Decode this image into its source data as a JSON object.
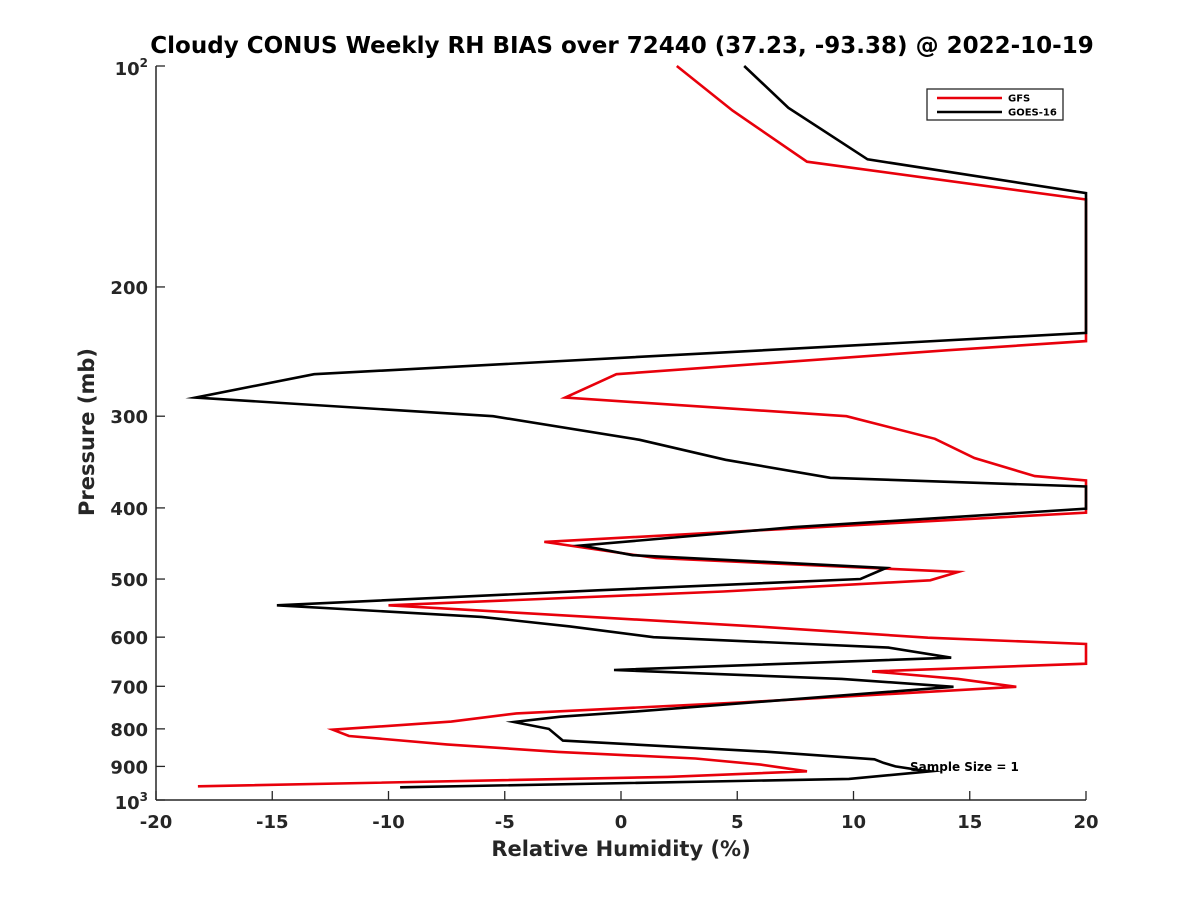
{
  "chart_data": {
    "type": "line",
    "title": "Cloudy CONUS Weekly RH BIAS over 72440 (37.23, -93.38) @ 2022-10-19",
    "xlabel": "Relative Humidity (%)",
    "ylabel": "Pressure (mb)",
    "xlim": [
      -20,
      20
    ],
    "ylim": [
      100,
      1000
    ],
    "y_scale": "log",
    "y_reversed": true,
    "xticks": [
      -20,
      -15,
      -10,
      -5,
      0,
      5,
      10,
      15,
      20
    ],
    "yticks": [
      {
        "label": "10",
        "sup": "2"
      },
      {
        "label": "200"
      },
      {
        "label": "300"
      },
      {
        "label": "400"
      },
      {
        "label": "500"
      },
      {
        "label": "600"
      },
      {
        "label": "700"
      },
      {
        "label": "800"
      },
      {
        "label": "900"
      },
      {
        "label": "10",
        "sup": "3"
      }
    ],
    "ytick_values": [
      100,
      200,
      300,
      400,
      500,
      600,
      700,
      800,
      900,
      1000
    ],
    "grid": false,
    "legend_position": "top-right",
    "annotation": "Sample Size = 1",
    "series": [
      {
        "name": "GFS",
        "color": "#e8000b",
        "points": [
          [
            2.4,
            100
          ],
          [
            4.8,
            115
          ],
          [
            8.0,
            135
          ],
          [
            20.0,
            152
          ],
          [
            20.0,
            237
          ],
          [
            14.0,
            244
          ],
          [
            -0.2,
            263
          ],
          [
            -2.4,
            283
          ],
          [
            9.7,
            300
          ],
          [
            13.5,
            322
          ],
          [
            15.2,
            342
          ],
          [
            17.8,
            362
          ],
          [
            20.0,
            367
          ],
          [
            20.0,
            406
          ],
          [
            -3.3,
            445
          ],
          [
            1.5,
            468
          ],
          [
            14.5,
            489
          ],
          [
            13.3,
            502
          ],
          [
            4.4,
            520
          ],
          [
            -10.0,
            543
          ],
          [
            5.8,
            580
          ],
          [
            13.2,
            601
          ],
          [
            20.0,
            613
          ],
          [
            20.0,
            652
          ],
          [
            10.8,
            668
          ],
          [
            14.5,
            684
          ],
          [
            17.0,
            701
          ],
          [
            5.3,
            736
          ],
          [
            -4.5,
            762
          ],
          [
            -7.3,
            782
          ],
          [
            -12.4,
            802
          ],
          [
            -11.7,
            818
          ],
          [
            -7.5,
            840
          ],
          [
            -2.7,
            860
          ],
          [
            3.2,
            878
          ],
          [
            6.0,
            895
          ],
          [
            8.0,
            914
          ],
          [
            2.0,
            930
          ],
          [
            -18.2,
            958
          ]
        ]
      },
      {
        "name": "GOES-16",
        "color": "#000000",
        "points": [
          [
            5.3,
            100
          ],
          [
            7.2,
            114
          ],
          [
            10.6,
            134
          ],
          [
            20.0,
            149
          ],
          [
            20.0,
            231
          ],
          [
            4.0,
            246
          ],
          [
            -13.2,
            263
          ],
          [
            -18.3,
            283
          ],
          [
            -5.5,
            300
          ],
          [
            0.8,
            323
          ],
          [
            4.5,
            344
          ],
          [
            9.0,
            364
          ],
          [
            20.0,
            374
          ],
          [
            20.0,
            401
          ],
          [
            7.4,
            425
          ],
          [
            -1.7,
            450
          ],
          [
            0.5,
            464
          ],
          [
            11.4,
            483
          ],
          [
            10.3,
            500
          ],
          [
            -1.0,
            518
          ],
          [
            -14.8,
            543
          ],
          [
            -6.0,
            563
          ],
          [
            -2.2,
            580
          ],
          [
            1.4,
            600
          ],
          [
            11.5,
            620
          ],
          [
            14.2,
            640
          ],
          [
            -0.3,
            665
          ],
          [
            9.5,
            684
          ],
          [
            14.3,
            701
          ],
          [
            0.5,
            758
          ],
          [
            -2.6,
            770
          ],
          [
            -4.6,
            783
          ],
          [
            -3.1,
            800
          ],
          [
            -2.5,
            830
          ],
          [
            6.4,
            860
          ],
          [
            10.9,
            880
          ],
          [
            11.3,
            890
          ],
          [
            11.8,
            900
          ],
          [
            12.8,
            910
          ],
          [
            13.3,
            914
          ],
          [
            9.8,
            936
          ],
          [
            -9.5,
            961
          ]
        ]
      }
    ]
  }
}
